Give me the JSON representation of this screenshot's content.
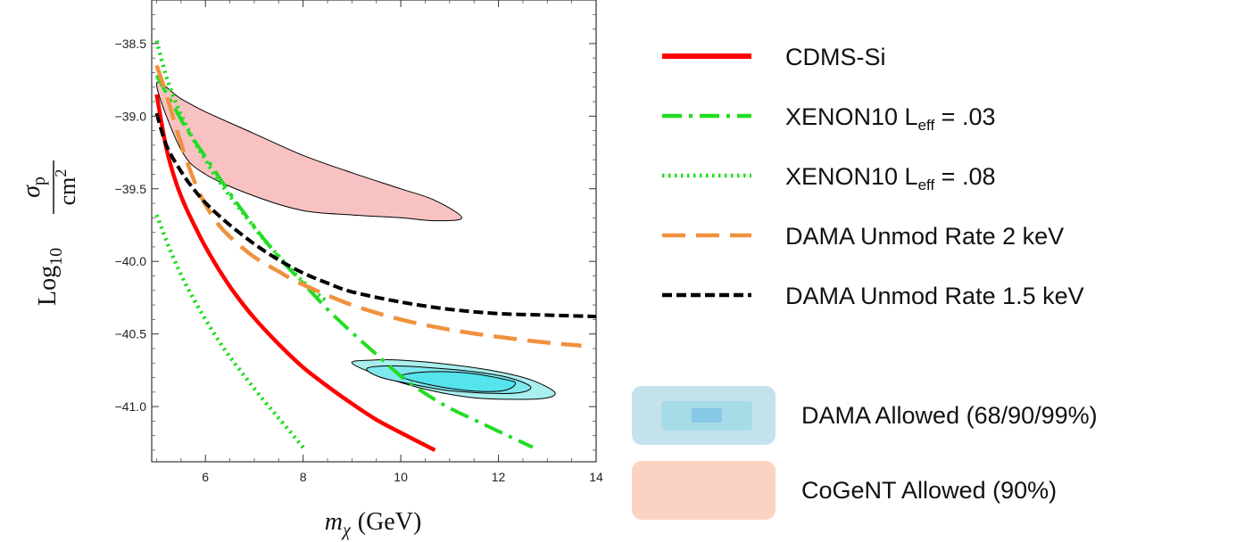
{
  "chart_data": {
    "type": "line",
    "xlabel": {
      "symbol": "m",
      "subscript": "χ",
      "unit": "(GeV)"
    },
    "ylabel": {
      "prefix": "Log",
      "prefix_sub": "10",
      "num": "σ",
      "num_sub": "p",
      "den": "cm",
      "den_sup": "2"
    },
    "xlim": [
      4.9,
      14.0
    ],
    "ylim": [
      -41.38,
      -38.2
    ],
    "x_ticks": [
      6,
      8,
      10,
      12,
      14
    ],
    "x_tick_labels": [
      "6",
      "8",
      "10",
      "12",
      "14"
    ],
    "y_ticks": [
      -38.5,
      -39.0,
      -39.5,
      -40.0,
      -40.5,
      -41.0
    ],
    "y_tick_labels": [
      "−38.5",
      "−39.0",
      "−39.5",
      "−40.0",
      "−40.5",
      "−41.0"
    ],
    "grid": false,
    "legend_placement": "right",
    "series": [
      {
        "name": "CDMS-Si",
        "color": "#ff0000",
        "style": "solid",
        "x": [
          5.0,
          5.2,
          5.4,
          5.6,
          5.8,
          6.0,
          6.3,
          6.6,
          7.0,
          7.5,
          8.0,
          8.5,
          9.0,
          9.5,
          10.0,
          10.7
        ],
        "y": [
          -38.85,
          -39.22,
          -39.46,
          -39.63,
          -39.77,
          -39.9,
          -40.07,
          -40.22,
          -40.39,
          -40.57,
          -40.73,
          -40.86,
          -40.98,
          -41.09,
          -41.18,
          -41.3
        ]
      },
      {
        "name": "XENON10 L_eff = .03",
        "color": "#22dd22",
        "style": "dashdot",
        "x": [
          5.0,
          5.3,
          5.6,
          6.0,
          6.5,
          7.0,
          7.5,
          8.0,
          8.5,
          9.0,
          9.5,
          10.0,
          10.5,
          11.0,
          11.5,
          12.0,
          12.7
        ],
        "y": [
          -38.72,
          -38.9,
          -39.08,
          -39.28,
          -39.53,
          -39.76,
          -39.97,
          -40.15,
          -40.33,
          -40.49,
          -40.64,
          -40.79,
          -40.91,
          -41.01,
          -41.09,
          -41.17,
          -41.28
        ]
      },
      {
        "name": "XENON10 L_eff = .08 (upper)",
        "color": "#22dd22",
        "style": "dotted",
        "x": [
          5.0,
          5.2,
          5.4,
          5.6,
          5.8,
          6.0,
          6.2,
          6.5,
          6.8,
          7.2,
          7.6,
          8.0,
          8.5
        ],
        "y": [
          -38.48,
          -38.73,
          -38.91,
          -39.06,
          -39.19,
          -39.3,
          -39.41,
          -39.55,
          -39.68,
          -39.85,
          -40.0,
          -40.14,
          -40.28
        ]
      },
      {
        "name": "XENON10 L_eff = .08 (lower)",
        "color": "#22dd22",
        "style": "dotted",
        "x": [
          5.0,
          5.3,
          5.6,
          6.0,
          6.4,
          6.8,
          7.2,
          7.6,
          8.05
        ],
        "y": [
          -39.68,
          -39.94,
          -40.16,
          -40.4,
          -40.61,
          -40.79,
          -40.96,
          -41.12,
          -41.3
        ]
      },
      {
        "name": "DAMA Unmod Rate 2 keV",
        "color": "#f0913e",
        "style": "longdash",
        "x": [
          5.0,
          5.2,
          5.4,
          5.6,
          5.8,
          6.0,
          6.3,
          6.6,
          7.0,
          7.5,
          8.0,
          9.0,
          10.0,
          11.0,
          12.0,
          13.0,
          13.7
        ],
        "y": [
          -38.65,
          -38.85,
          -39.08,
          -39.29,
          -39.47,
          -39.61,
          -39.76,
          -39.86,
          -39.97,
          -40.07,
          -40.16,
          -40.3,
          -40.4,
          -40.47,
          -40.52,
          -40.56,
          -40.58
        ]
      },
      {
        "name": "DAMA Unmod Rate 1.5 keV",
        "color": "#000000",
        "style": "shortdash",
        "x": [
          5.0,
          5.2,
          5.5,
          5.8,
          6.1,
          6.5,
          7.0,
          7.5,
          8.0,
          8.5,
          9.0,
          10.0,
          11.0,
          12.0,
          13.0,
          14.0
        ],
        "y": [
          -38.98,
          -39.2,
          -39.38,
          -39.52,
          -39.63,
          -39.75,
          -39.88,
          -39.99,
          -40.08,
          -40.15,
          -40.21,
          -40.28,
          -40.33,
          -40.36,
          -40.37,
          -40.38
        ]
      }
    ],
    "regions": [
      {
        "name": "CoGeNT Allowed (90%)",
        "color": "#f8c2c2",
        "x": [
          5.0,
          5.5,
          6.0,
          7.0,
          8.0,
          9.0,
          10.0,
          10.7,
          11.25,
          10.7,
          10.0,
          9.0,
          8.0,
          7.0,
          6.0,
          5.5,
          5.0
        ],
        "y": [
          -38.78,
          -38.88,
          -38.97,
          -39.12,
          -39.27,
          -39.39,
          -39.5,
          -39.58,
          -39.7,
          -39.72,
          -39.7,
          -39.68,
          -39.65,
          -39.55,
          -39.4,
          -39.23,
          -39.05
        ]
      },
      {
        "name": "DAMA 99%",
        "color": "#aaeeee",
        "x": [
          9.0,
          9.4,
          10.0,
          11.0,
          12.0,
          12.7,
          13.15,
          13.0,
          12.5,
          11.5,
          10.5,
          9.6,
          9.0
        ],
        "y": [
          -40.7,
          -40.68,
          -40.68,
          -40.71,
          -40.76,
          -40.82,
          -40.9,
          -40.94,
          -40.95,
          -40.94,
          -40.88,
          -40.79,
          -40.73
        ]
      },
      {
        "name": "DAMA 90%",
        "color": "#7fe7ee",
        "x": [
          9.3,
          9.7,
          10.5,
          11.5,
          12.2,
          12.65,
          12.5,
          12.0,
          11.0,
          10.3,
          9.6,
          9.3
        ],
        "y": [
          -40.74,
          -40.72,
          -40.73,
          -40.76,
          -40.8,
          -40.86,
          -40.9,
          -40.91,
          -40.89,
          -40.85,
          -40.8,
          -40.76
        ]
      },
      {
        "name": "DAMA 68%",
        "color": "#55e3ec",
        "x": [
          10.0,
          10.6,
          11.4,
          12.1,
          12.35,
          12.1,
          11.4,
          10.6,
          10.0
        ],
        "y": [
          -40.79,
          -40.76,
          -40.77,
          -40.81,
          -40.84,
          -40.89,
          -40.89,
          -40.85,
          -40.81
        ]
      }
    ]
  },
  "legend": {
    "lines": [
      {
        "label": "CDMS-Si",
        "sub": "",
        "after": "",
        "color": "#ff0000",
        "style": "solid"
      },
      {
        "label": "XENON10 L",
        "sub": "eff",
        "after": " = .03",
        "color": "#22dd22",
        "style": "dashdot"
      },
      {
        "label": "XENON10 L",
        "sub": "eff",
        "after": " = .08",
        "color": "#22dd22",
        "style": "dotted"
      },
      {
        "label": "DAMA Unmod Rate 2 keV",
        "sub": "",
        "after": "",
        "color": "#f0913e",
        "style": "longdash"
      },
      {
        "label": "DAMA Unmod Rate 1.5 keV",
        "sub": "",
        "after": "",
        "color": "#000000",
        "style": "shortdash"
      }
    ],
    "boxes": [
      {
        "label": "DAMA Allowed (68/90/99%)",
        "colors": [
          "#c4e2ec",
          "#a6dce8",
          "#86c8e6"
        ]
      },
      {
        "label": "CoGeNT Allowed (90%)",
        "colors": [
          "#fcd3c3"
        ]
      }
    ]
  }
}
